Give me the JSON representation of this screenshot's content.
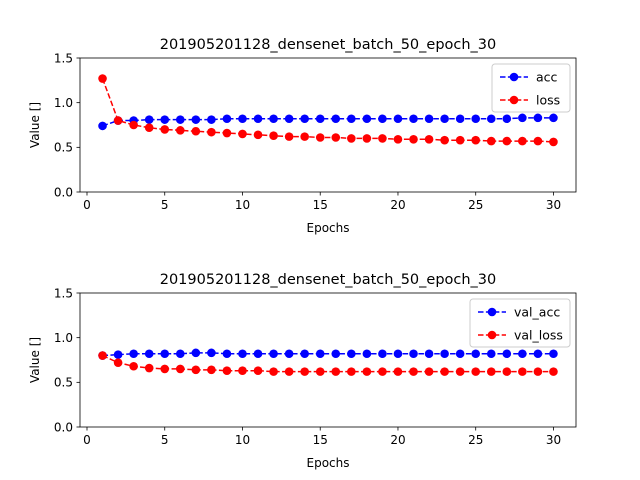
{
  "chart_data": [
    {
      "type": "line",
      "title": "201905201128_densenet_batch_50_epoch_30",
      "xlabel": "Epochs",
      "ylabel": "Value []",
      "xlim": [
        -0.45,
        31.45
      ],
      "ylim": [
        0,
        1.5
      ],
      "xticks": [
        0,
        5,
        10,
        15,
        20,
        25,
        30
      ],
      "yticks": [
        0.0,
        0.5,
        1.0,
        1.5
      ],
      "xtick_labels": [
        "0",
        "5",
        "10",
        "15",
        "20",
        "25",
        "30"
      ],
      "ytick_labels": [
        "0.0",
        "0.5",
        "1.0",
        "1.5"
      ],
      "grid": false,
      "legend_position": "top-right",
      "x": [
        1,
        2,
        3,
        4,
        5,
        6,
        7,
        8,
        9,
        10,
        11,
        12,
        13,
        14,
        15,
        16,
        17,
        18,
        19,
        20,
        21,
        22,
        23,
        24,
        25,
        26,
        27,
        28,
        29,
        30
      ],
      "series": [
        {
          "name": "acc",
          "color": "#0000ff",
          "values": [
            0.74,
            0.8,
            0.8,
            0.81,
            0.81,
            0.81,
            0.81,
            0.81,
            0.82,
            0.82,
            0.82,
            0.82,
            0.82,
            0.82,
            0.82,
            0.82,
            0.82,
            0.82,
            0.82,
            0.82,
            0.82,
            0.82,
            0.82,
            0.82,
            0.82,
            0.82,
            0.82,
            0.83,
            0.83,
            0.83
          ]
        },
        {
          "name": "loss",
          "color": "#ff0000",
          "values": [
            1.27,
            0.8,
            0.75,
            0.72,
            0.7,
            0.69,
            0.68,
            0.67,
            0.66,
            0.65,
            0.64,
            0.63,
            0.62,
            0.62,
            0.61,
            0.61,
            0.6,
            0.6,
            0.6,
            0.59,
            0.59,
            0.59,
            0.58,
            0.58,
            0.58,
            0.57,
            0.57,
            0.57,
            0.57,
            0.56
          ]
        }
      ]
    },
    {
      "type": "line",
      "title": "201905201128_densenet_batch_50_epoch_30",
      "xlabel": "Epochs",
      "ylabel": "Value []",
      "xlim": [
        -0.45,
        31.45
      ],
      "ylim": [
        0,
        1.5
      ],
      "xticks": [
        0,
        5,
        10,
        15,
        20,
        25,
        30
      ],
      "yticks": [
        0.0,
        0.5,
        1.0,
        1.5
      ],
      "xtick_labels": [
        "0",
        "5",
        "10",
        "15",
        "20",
        "25",
        "30"
      ],
      "ytick_labels": [
        "0.0",
        "0.5",
        "1.0",
        "1.5"
      ],
      "grid": false,
      "legend_position": "top-right",
      "x": [
        1,
        2,
        3,
        4,
        5,
        6,
        7,
        8,
        9,
        10,
        11,
        12,
        13,
        14,
        15,
        16,
        17,
        18,
        19,
        20,
        21,
        22,
        23,
        24,
        25,
        26,
        27,
        28,
        29,
        30
      ],
      "series": [
        {
          "name": "val_acc",
          "color": "#0000ff",
          "values": [
            0.8,
            0.81,
            0.82,
            0.82,
            0.82,
            0.82,
            0.83,
            0.83,
            0.82,
            0.82,
            0.82,
            0.82,
            0.82,
            0.82,
            0.82,
            0.82,
            0.82,
            0.82,
            0.82,
            0.82,
            0.82,
            0.82,
            0.82,
            0.82,
            0.82,
            0.82,
            0.82,
            0.82,
            0.82,
            0.82
          ]
        },
        {
          "name": "val_loss",
          "color": "#ff0000",
          "values": [
            0.8,
            0.72,
            0.68,
            0.66,
            0.65,
            0.65,
            0.64,
            0.64,
            0.63,
            0.63,
            0.63,
            0.62,
            0.62,
            0.62,
            0.62,
            0.62,
            0.62,
            0.62,
            0.62,
            0.62,
            0.62,
            0.62,
            0.62,
            0.62,
            0.62,
            0.62,
            0.62,
            0.62,
            0.62,
            0.62
          ]
        }
      ]
    }
  ]
}
